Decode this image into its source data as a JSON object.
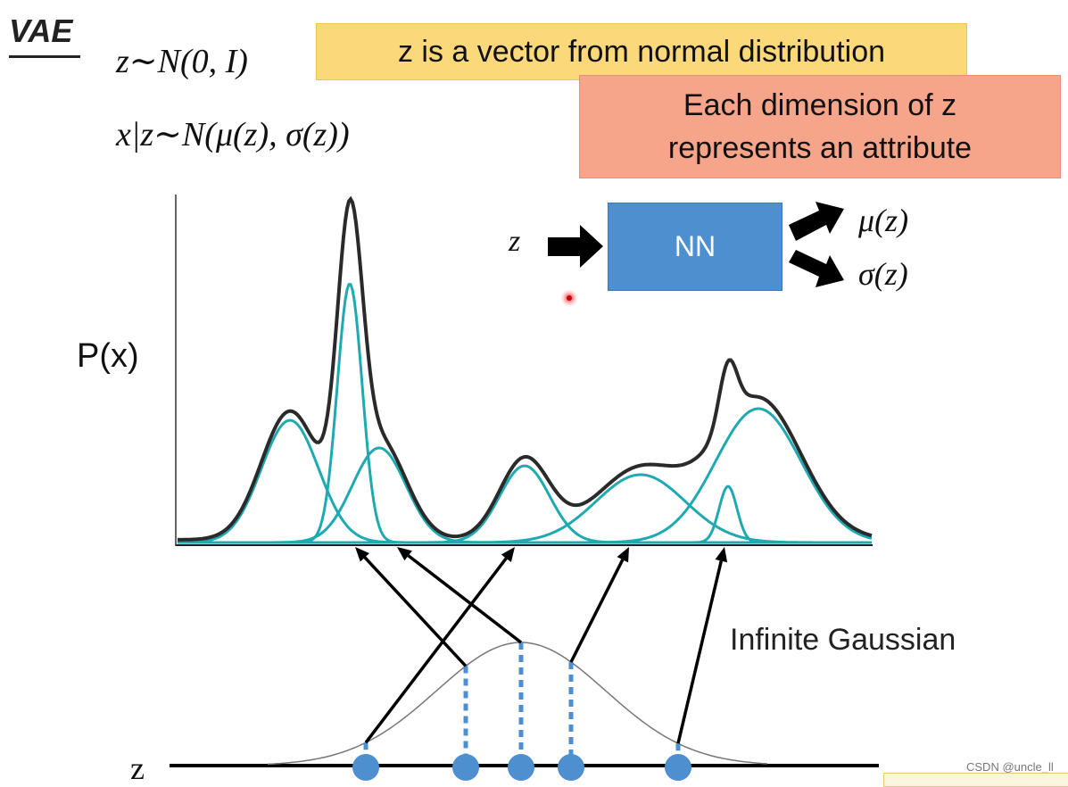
{
  "title": "VAE",
  "formulas": {
    "prior": "z∼N(0, I)",
    "conditional": "x|z∼N(μ(z), σ(z))"
  },
  "callouts": {
    "yellow": "z is a vector from normal distribution",
    "red_line1": "Each dimension of z",
    "red_line2": "represents an attribute"
  },
  "network": {
    "input_label": "z",
    "box_label": "NN",
    "mu_label": "μ(z)",
    "sigma_label": "σ(z)"
  },
  "plot": {
    "ylabel": "P(x)",
    "annotation": "Infinite Gaussian",
    "z_axis_label": "z"
  },
  "watermark": "CSDN @uncle_ll",
  "colors": {
    "callout_yellow": "#fbd97a",
    "callout_red": "#f7a58a",
    "nn_box": "#4e8fd0",
    "component_curve": "#1fa9b0",
    "mixture_curve": "#2a2a2a",
    "sample_dots": "#4e8fd0"
  },
  "chart_data": {
    "type": "line",
    "components": [
      {
        "mean": 325,
        "sd": 32,
        "amp": 137
      },
      {
        "mean": 392,
        "sd": 14,
        "amp": 290
      },
      {
        "mean": 425,
        "sd": 30,
        "amp": 106
      },
      {
        "mean": 588,
        "sd": 28,
        "amp": 86
      },
      {
        "mean": 718,
        "sd": 50,
        "amp": 76
      },
      {
        "mean": 816,
        "sd": 10,
        "amp": 63
      },
      {
        "mean": 850,
        "sd": 48,
        "amp": 150
      }
    ],
    "samples": [
      410,
      522,
      584,
      640,
      760
    ]
  }
}
